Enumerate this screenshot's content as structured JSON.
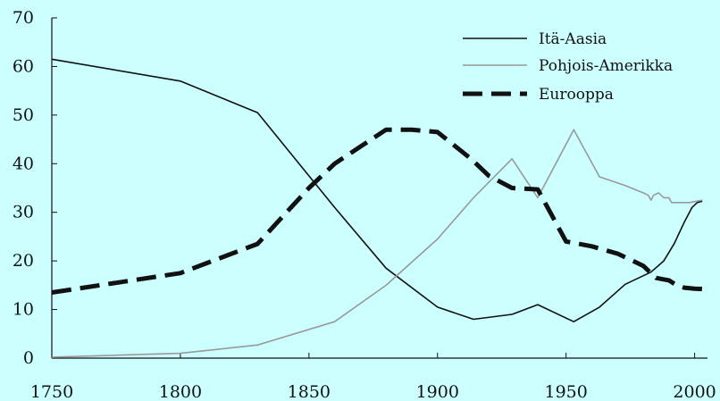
{
  "chart_data": {
    "type": "line",
    "title": "",
    "xlabel": "",
    "ylabel": "",
    "xlim": [
      1750,
      2005
    ],
    "ylim": [
      0,
      70
    ],
    "x_ticks": [
      "1750",
      "1800",
      "1850",
      "1900",
      "1950",
      "2000"
    ],
    "y_ticks": [
      "0",
      "10",
      "20",
      "30",
      "40",
      "50",
      "60",
      "70"
    ],
    "grid": false,
    "legend_position": "top-right",
    "series": [
      {
        "name": "Itä-Aasia",
        "color": "#111111",
        "style": "solid-thin",
        "points": [
          [
            1750,
            61.5
          ],
          [
            1800,
            57
          ],
          [
            1830,
            50.5
          ],
          [
            1860,
            31
          ],
          [
            1880,
            18.5
          ],
          [
            1900,
            10.5
          ],
          [
            1914,
            8
          ],
          [
            1929,
            9
          ],
          [
            1939,
            11
          ],
          [
            1953,
            7.5
          ],
          [
            1963,
            10.5
          ],
          [
            1973,
            15.2
          ],
          [
            1983,
            17.7
          ],
          [
            1988,
            20
          ],
          [
            1992,
            23.5
          ],
          [
            1996,
            28
          ],
          [
            1999,
            31
          ],
          [
            2001,
            32
          ],
          [
            2003,
            32.3
          ]
        ]
      },
      {
        "name": "Pohjois-Amerikka",
        "color": "#999999",
        "style": "solid-thin",
        "points": [
          [
            1750,
            0.2
          ],
          [
            1800,
            1
          ],
          [
            1830,
            2.7
          ],
          [
            1860,
            7.5
          ],
          [
            1880,
            15
          ],
          [
            1900,
            24.5
          ],
          [
            1914,
            33
          ],
          [
            1929,
            41
          ],
          [
            1939,
            33
          ],
          [
            1953,
            47
          ],
          [
            1963,
            37.3
          ],
          [
            1973,
            35.5
          ],
          [
            1980,
            34
          ],
          [
            1982,
            33.5
          ],
          [
            1983,
            32.5
          ],
          [
            1984,
            33.5
          ],
          [
            1986,
            34
          ],
          [
            1988,
            33
          ],
          [
            1990,
            33
          ],
          [
            1991,
            32
          ],
          [
            1995,
            32
          ],
          [
            1998,
            32
          ],
          [
            2000,
            32.2
          ],
          [
            2003,
            32.5
          ]
        ]
      },
      {
        "name": "Eurooppa",
        "color": "#111111",
        "style": "dashed-thick",
        "points": [
          [
            1750,
            13.5
          ],
          [
            1800,
            17.5
          ],
          [
            1830,
            23.5
          ],
          [
            1850,
            35
          ],
          [
            1860,
            40
          ],
          [
            1870,
            43.5
          ],
          [
            1880,
            47
          ],
          [
            1890,
            47
          ],
          [
            1900,
            46.5
          ],
          [
            1913,
            41
          ],
          [
            1920,
            37.5
          ],
          [
            1929,
            35
          ],
          [
            1939,
            34.7
          ],
          [
            1950,
            24
          ],
          [
            1960,
            23
          ],
          [
            1970,
            21.5
          ],
          [
            1980,
            19
          ],
          [
            1985,
            16.5
          ],
          [
            1990,
            16
          ],
          [
            1993,
            15
          ],
          [
            1996,
            14.5
          ],
          [
            2000,
            14.3
          ],
          [
            2003,
            14.2
          ]
        ]
      }
    ]
  }
}
